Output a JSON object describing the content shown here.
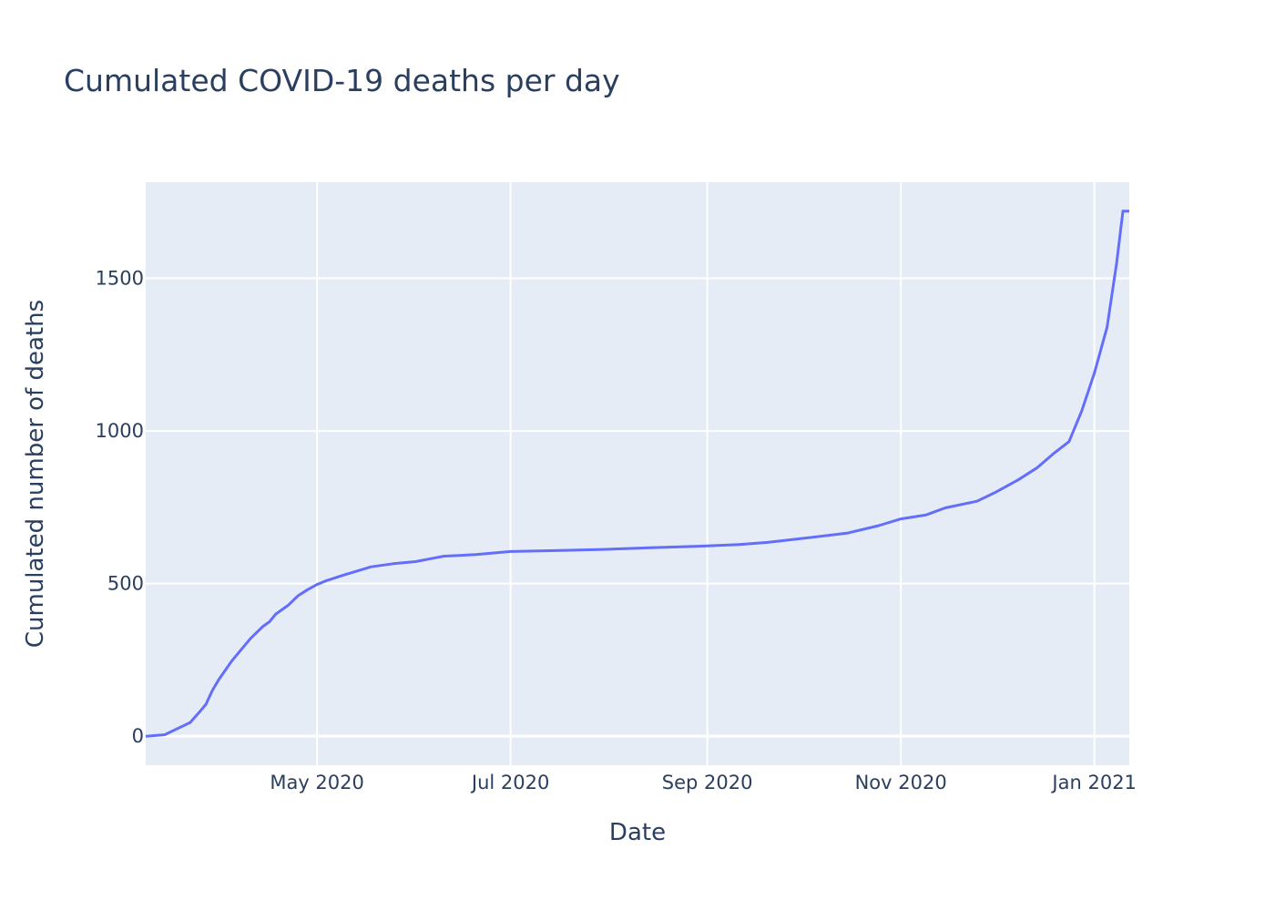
{
  "chart_data": {
    "type": "line",
    "title": "Cumulated COVID-19 deaths per day",
    "xlabel": "Date",
    "ylabel": "Cumulated number of deaths",
    "x_range": [
      "2020-03-08",
      "2021-01-12"
    ],
    "y_range": [
      -95,
      1815
    ],
    "x_ticks": [
      {
        "date": "2020-05-01",
        "label": "May 2020"
      },
      {
        "date": "2020-07-01",
        "label": "Jul 2020"
      },
      {
        "date": "2020-09-01",
        "label": "Sep 2020"
      },
      {
        "date": "2020-11-01",
        "label": "Nov 2020"
      },
      {
        "date": "2021-01-01",
        "label": "Jan 2021"
      }
    ],
    "y_ticks": [
      0,
      500,
      1000,
      1500
    ],
    "grid": true,
    "colors": {
      "line": "#636efa",
      "plot_bg": "#e5ecf6",
      "grid": "#ffffff",
      "text": "#2a3f5f"
    },
    "series": [
      {
        "name": "",
        "x": [
          "2020-03-08",
          "2020-03-14",
          "2020-03-18",
          "2020-03-22",
          "2020-03-25",
          "2020-03-27",
          "2020-03-29",
          "2020-03-31",
          "2020-04-02",
          "2020-04-04",
          "2020-04-06",
          "2020-04-08",
          "2020-04-10",
          "2020-04-12",
          "2020-04-14",
          "2020-04-16",
          "2020-04-18",
          "2020-04-20",
          "2020-04-22",
          "2020-04-25",
          "2020-04-28",
          "2020-05-01",
          "2020-05-04",
          "2020-05-10",
          "2020-05-18",
          "2020-05-25",
          "2020-06-01",
          "2020-06-05",
          "2020-06-10",
          "2020-06-20",
          "2020-07-01",
          "2020-07-15",
          "2020-07-30",
          "2020-08-15",
          "2020-08-31",
          "2020-09-11",
          "2020-09-20",
          "2020-10-01",
          "2020-10-15",
          "2020-10-25",
          "2020-11-01",
          "2020-11-09",
          "2020-11-15",
          "2020-11-25",
          "2020-12-01",
          "2020-12-08",
          "2020-12-14",
          "2020-12-19",
          "2020-12-24",
          "2020-12-28",
          "2021-01-01",
          "2021-01-05",
          "2021-01-08",
          "2021-01-10",
          "2021-01-12"
        ],
        "y": [
          0,
          5,
          25,
          45,
          80,
          105,
          150,
          185,
          215,
          245,
          270,
          295,
          320,
          340,
          360,
          375,
          400,
          415,
          430,
          460,
          480,
          497,
          510,
          530,
          555,
          565,
          572,
          580,
          590,
          595,
          605,
          608,
          612,
          618,
          623,
          628,
          635,
          648,
          665,
          690,
          712,
          725,
          748,
          770,
          800,
          840,
          880,
          925,
          965,
          1065,
          1190,
          1340,
          1550,
          1720,
          1720
        ]
      }
    ]
  }
}
